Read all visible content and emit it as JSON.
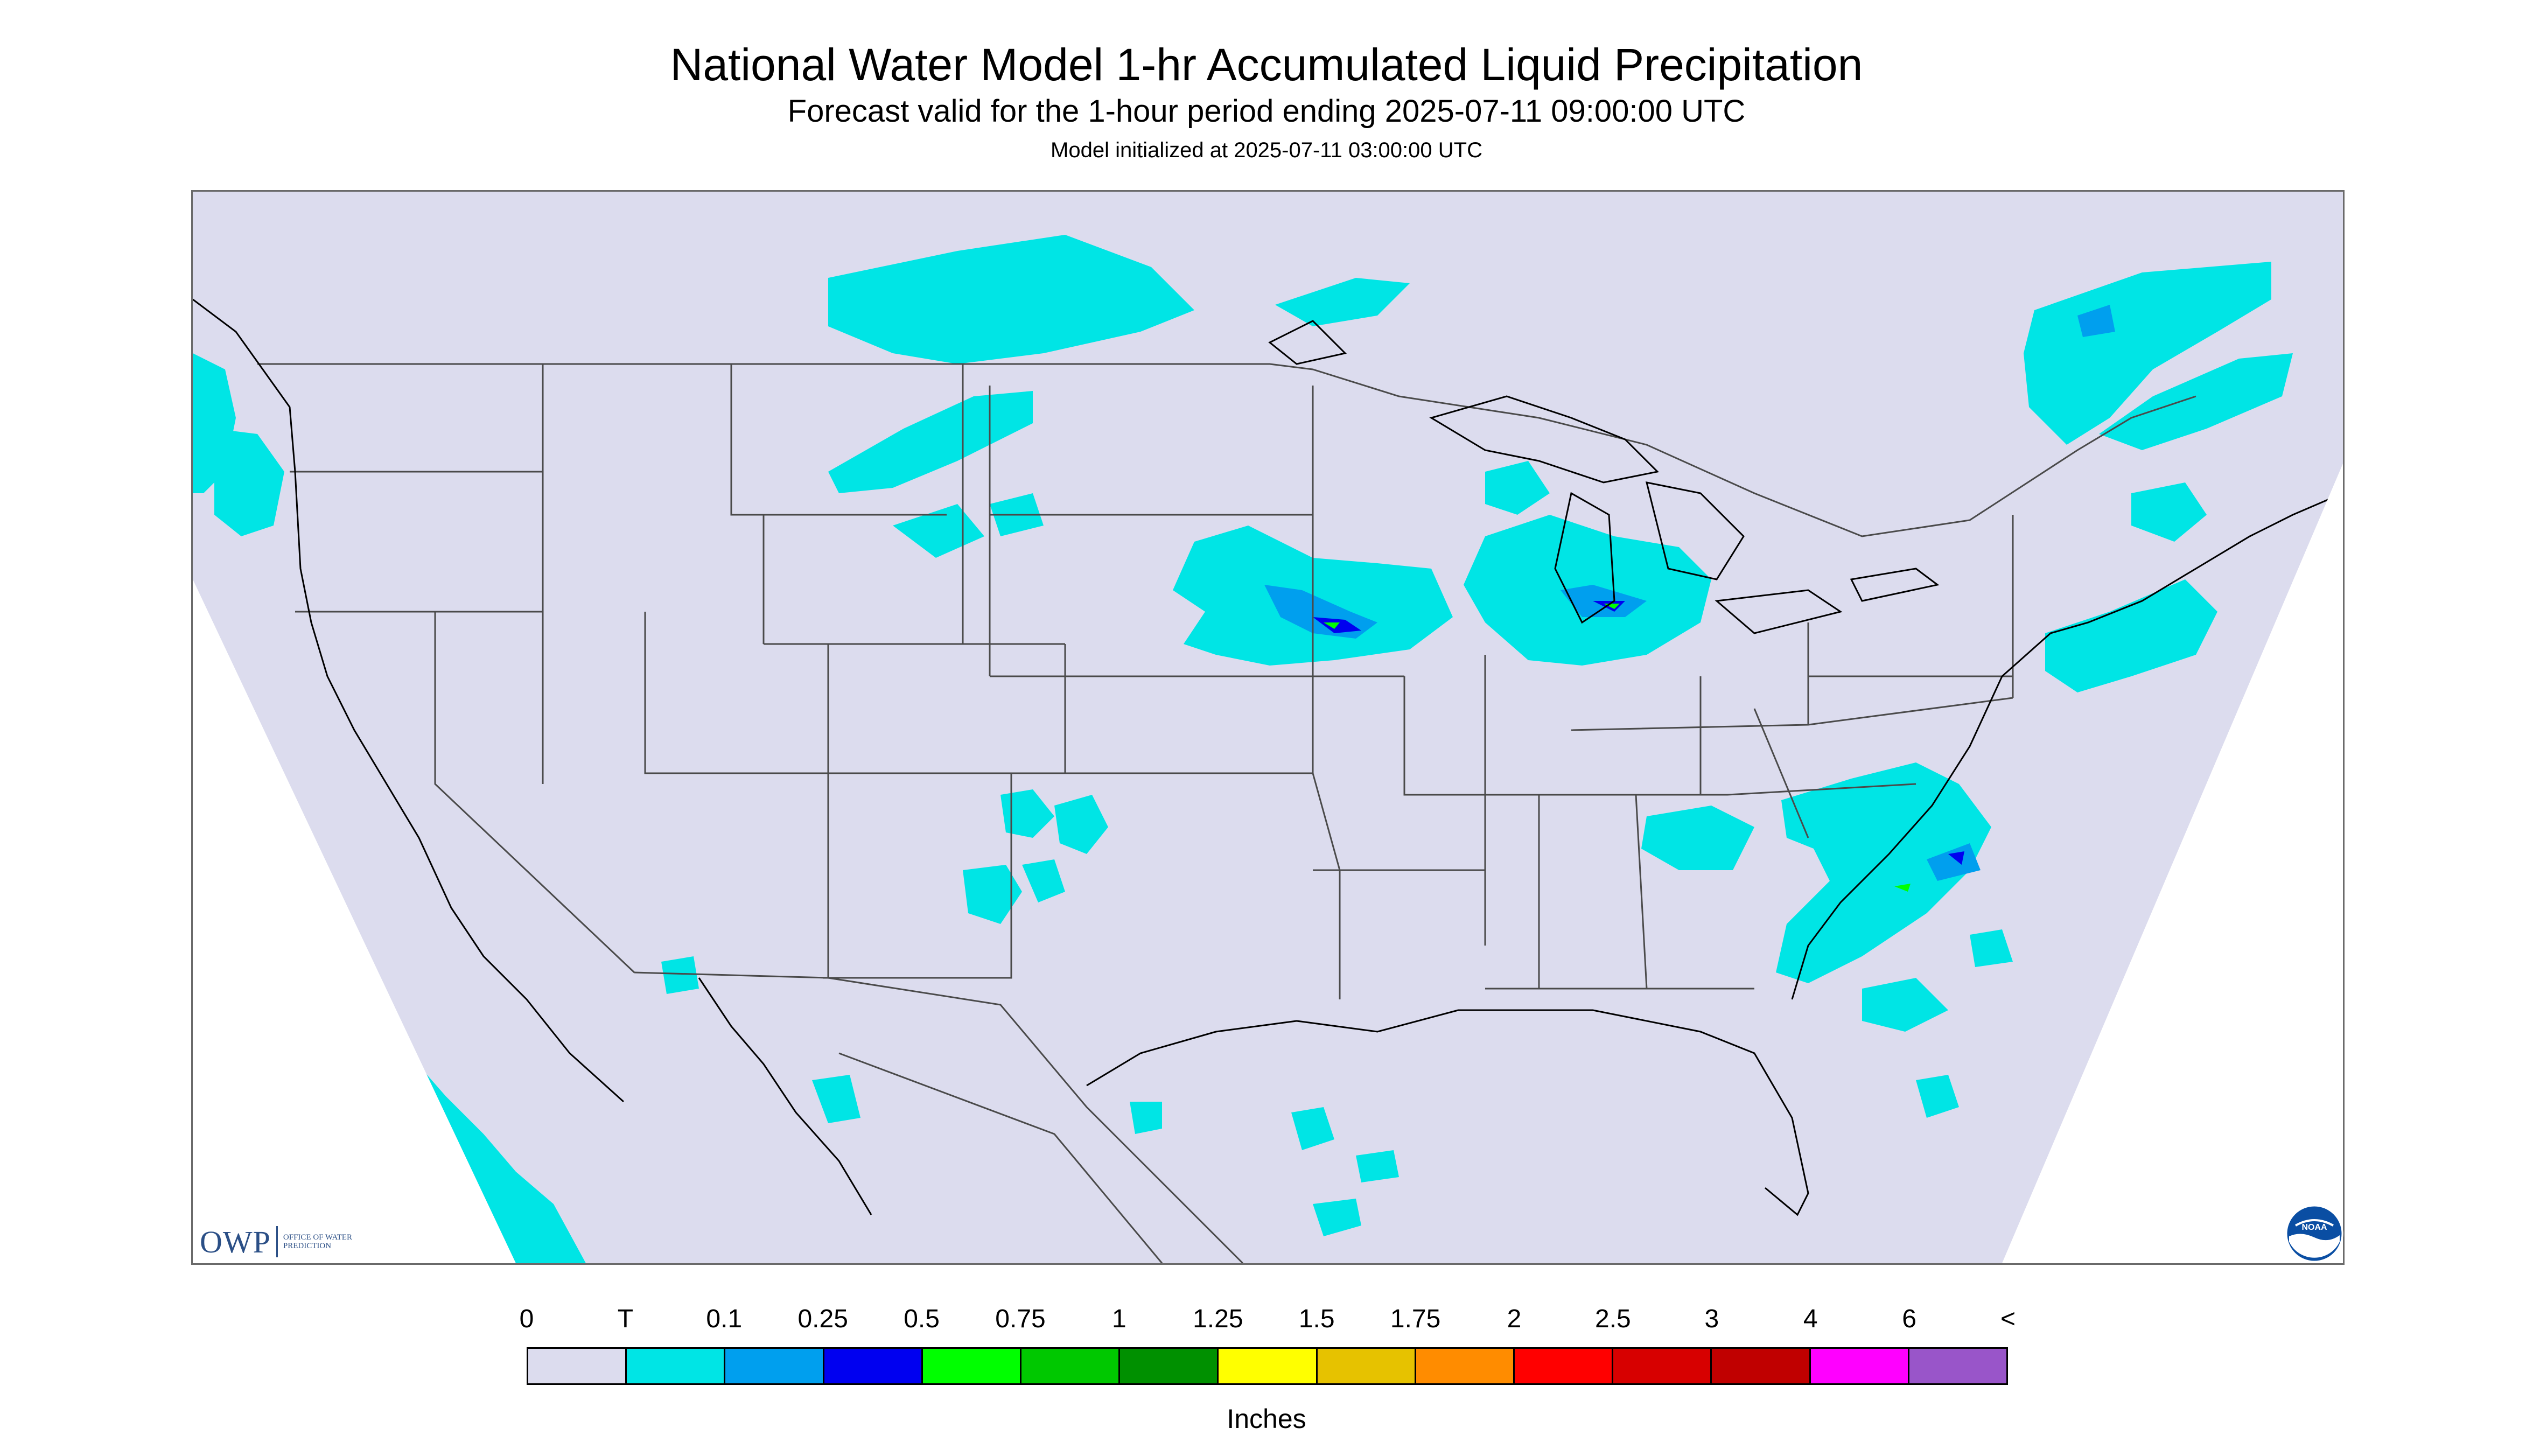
{
  "title": "National Water Model 1-hr Accumulated Liquid Precipitation",
  "subtitle": "Forecast valid for the 1-hour period ending 2025-07-11 09:00:00 UTC",
  "init_line": "Model initialized at 2025-07-11 03:00:00 UTC",
  "logos": {
    "owp_mark": "OWP",
    "owp_name": "Office of Water Prediction",
    "noaa_mark": "NOAA"
  },
  "colors": {
    "no_data_background": "#ffffff",
    "domain_fill": "#dcdcee",
    "boundary_line": "#4a4a4a",
    "coast_line": "#000000"
  },
  "legend": {
    "labels": [
      "0",
      "T",
      "0.1",
      "0.25",
      "0.5",
      "0.75",
      "1",
      "1.25",
      "1.5",
      "1.75",
      "2",
      "2.5",
      "3",
      "4",
      "6",
      "<"
    ],
    "colors": [
      "#dcdcee",
      "#00e5e5",
      "#009fee",
      "#0000f0",
      "#00ff00",
      "#00c800",
      "#009000",
      "#ffff00",
      "#e6c200",
      "#ff8c00",
      "#ff0000",
      "#d70000",
      "#c00000",
      "#ff00ff",
      "#9955c9"
    ],
    "units": "Inches"
  }
}
